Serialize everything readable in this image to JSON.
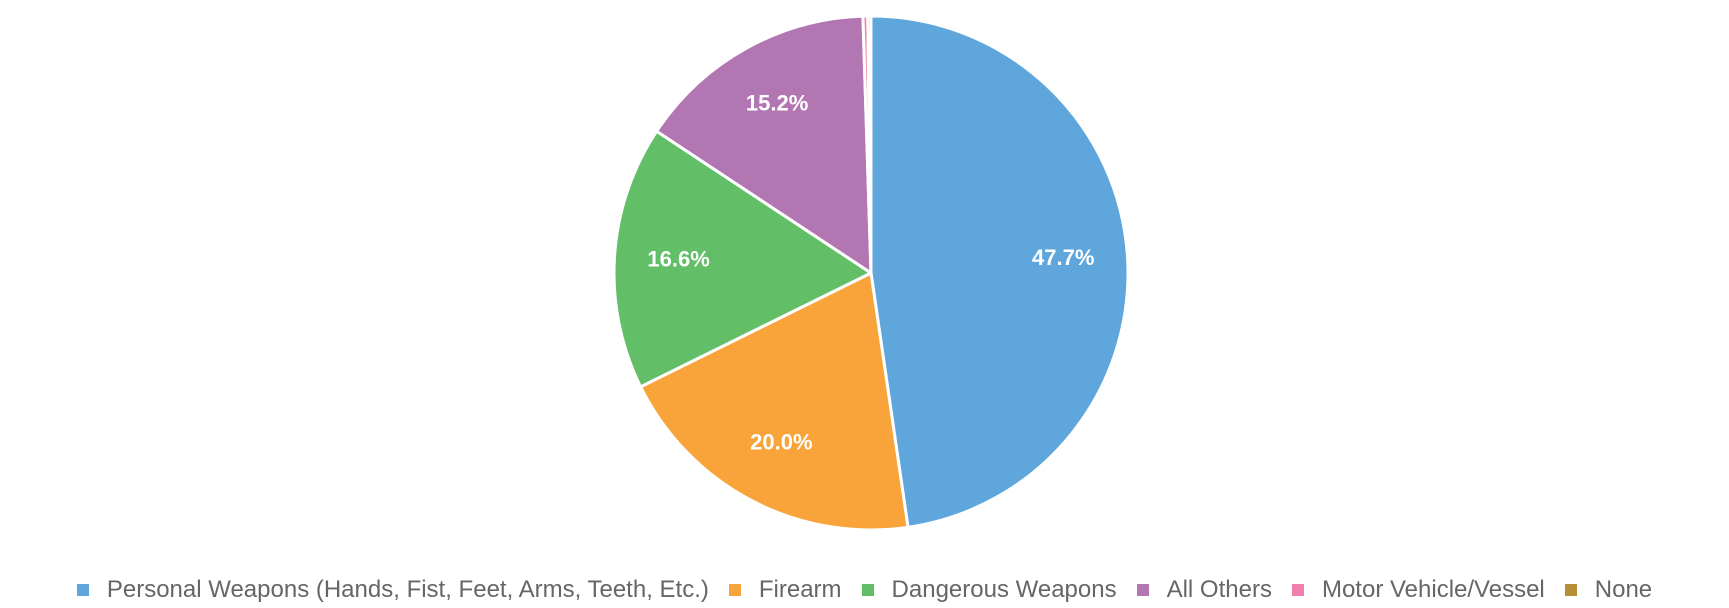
{
  "chart_data": {
    "type": "pie",
    "title": "",
    "categories": [
      "Personal Weapons (Hands, Fist, Feet, Arms, Teeth, Etc.)",
      "Firearm",
      "Dangerous Weapons",
      "All Others",
      "Motor Vehicle/Vessel",
      "None"
    ],
    "values": [
      47.7,
      20.0,
      16.6,
      15.2,
      0.3,
      0.2
    ],
    "value_labels": [
      "47.7%",
      "20.0%",
      "16.6%",
      "15.2%",
      "",
      ""
    ],
    "colors": [
      "#5ea6dc",
      "#f9a43a",
      "#62be67",
      "#b277b3",
      "#f07fb0",
      "#b58f36"
    ],
    "legend_position": "bottom",
    "start_angle_deg": 0,
    "direction": "clockwise"
  }
}
